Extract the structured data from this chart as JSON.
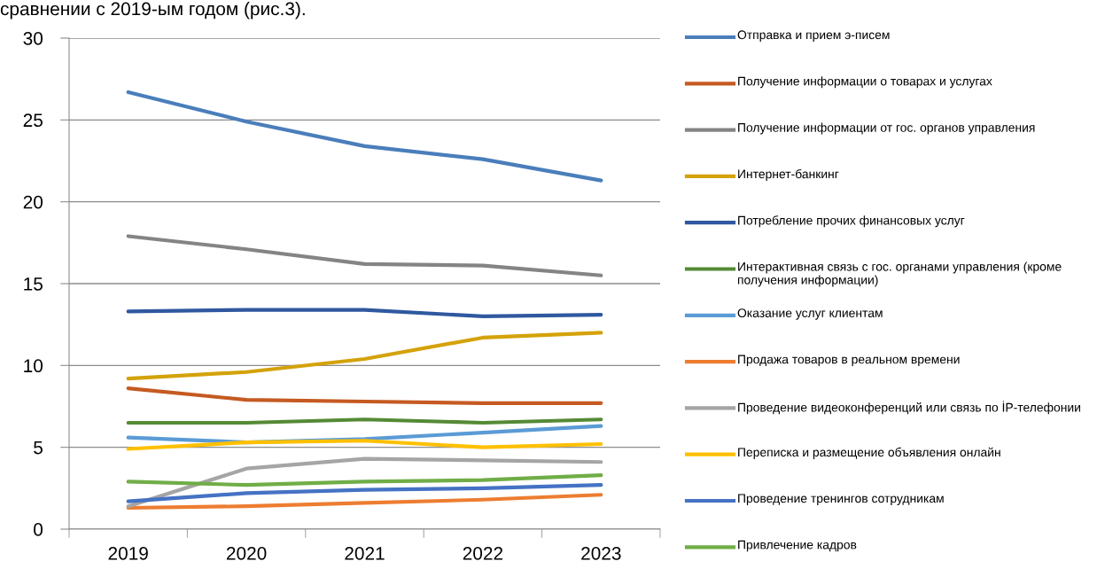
{
  "chart_data": {
    "type": "line",
    "categories": [
      "2019",
      "2020",
      "2021",
      "2022",
      "2023"
    ],
    "ylim": [
      0,
      30
    ],
    "yticks": [
      0,
      5,
      10,
      15,
      20,
      25,
      30
    ],
    "grid": "y",
    "legend": "right",
    "marker": "none",
    "line_style": "solid",
    "annotations": [
      "сравнении с 2019-ым годом (рис.3)."
    ],
    "series": [
      {
        "name": "Отправка и прием э-писем",
        "color": "#4a7ebb",
        "values": [
          26.7,
          24.9,
          23.4,
          22.6,
          21.3
        ]
      },
      {
        "name": "Получение информации о товарах и услугах",
        "color": "#c55a22",
        "values": [
          8.6,
          7.9,
          7.8,
          7.7,
          7.7
        ]
      },
      {
        "name": "Получение информации от гос. органов управления",
        "color": "#848484",
        "values": [
          17.9,
          17.1,
          16.2,
          16.1,
          15.5
        ]
      },
      {
        "name": "Интернет-банкинг",
        "color": "#d4a20a",
        "values": [
          9.2,
          9.6,
          10.4,
          11.7,
          12.0
        ]
      },
      {
        "name": "Потребление прочих финансовых услуг",
        "color": "#2f58a0",
        "values": [
          13.3,
          13.4,
          13.4,
          13.0,
          13.1
        ]
      },
      {
        "name": "Интерактивная связь с гос. органами управления (кроме получения информации)",
        "color": "#548a35",
        "values": [
          6.5,
          6.5,
          6.7,
          6.5,
          6.7
        ]
      },
      {
        "name": "Оказание услуг клиентам",
        "color": "#5b9bd5",
        "values": [
          5.6,
          5.3,
          5.5,
          5.9,
          6.3
        ]
      },
      {
        "name": "Продажа товаров в реальном времени",
        "color": "#ed7d31",
        "values": [
          1.3,
          1.4,
          1.6,
          1.8,
          2.1
        ]
      },
      {
        "name": "Проведение видеоконференций или связь по İP-телефонии",
        "color": "#a5a5a5",
        "values": [
          1.4,
          3.7,
          4.3,
          4.2,
          4.1
        ]
      },
      {
        "name": "Переписка и размещение объявления онлайн",
        "color": "#ffc000",
        "values": [
          4.9,
          5.3,
          5.4,
          5.0,
          5.2
        ]
      },
      {
        "name": "Проведение тренингов сотрудникам",
        "color": "#4472c4",
        "values": [
          1.7,
          2.2,
          2.4,
          2.5,
          2.7
        ]
      },
      {
        "name": "Привлечение кадров",
        "color": "#70ad47",
        "values": [
          2.9,
          2.7,
          2.9,
          3.0,
          3.3
        ]
      }
    ]
  }
}
